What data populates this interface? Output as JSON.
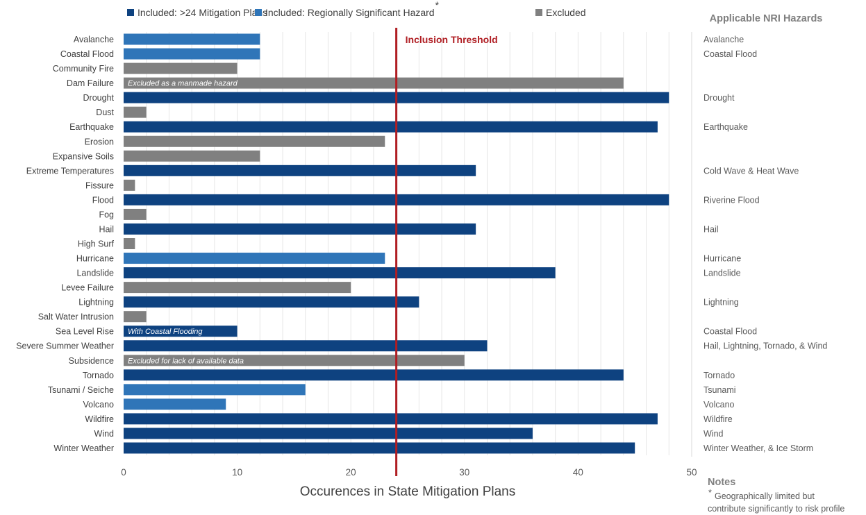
{
  "chart_data": {
    "type": "bar",
    "orientation": "horizontal",
    "xlabel": "Occurences in State Mitigation Plans",
    "xlim": [
      0,
      50
    ],
    "xticks": [
      0,
      10,
      20,
      30,
      40,
      50
    ],
    "grid": true,
    "legend_position": "top",
    "legend": [
      {
        "key": "included",
        "label": "Included: >24 Mitigation Plans",
        "color": "#0e4280"
      },
      {
        "key": "regional",
        "label": "Included: Regionally Significant Hazard",
        "marker": "*",
        "color": "#2f75b8"
      },
      {
        "key": "excluded",
        "label": "Excluded",
        "color": "#808080"
      }
    ],
    "threshold": {
      "value": 24,
      "label": "Inclusion Threshold",
      "color": "#b01e23"
    },
    "side_title": "Applicable NRI Hazards",
    "categories": [
      "Avalanche",
      "Coastal Flood",
      "Community Fire",
      "Dam Failure",
      "Drought",
      "Dust",
      "Earthquake",
      "Erosion",
      "Expansive Soils",
      "Extreme Temperatures",
      "Fissure",
      "Flood",
      "Fog",
      "Hail",
      "High Surf",
      "Hurricane",
      "Landslide",
      "Levee Failure",
      "Lightning",
      "Salt Water Intrusion",
      "Sea Level Rise",
      "Severe Summer Weather",
      "Subsidence",
      "Tornado",
      "Tsunami / Seiche",
      "Volcano",
      "Wildfire",
      "Wind",
      "Winter Weather"
    ],
    "values": [
      12,
      12,
      10,
      44,
      48,
      2,
      47,
      23,
      12,
      31,
      1,
      48,
      2,
      31,
      1,
      23,
      38,
      20,
      26,
      2,
      10,
      32,
      30,
      44,
      16,
      9,
      47,
      36,
      45
    ],
    "status": [
      "regional",
      "regional",
      "excluded",
      "excluded",
      "included",
      "excluded",
      "included",
      "excluded",
      "excluded",
      "included",
      "excluded",
      "included",
      "excluded",
      "included",
      "excluded",
      "regional",
      "included",
      "excluded",
      "included",
      "excluded",
      "included",
      "included",
      "excluded",
      "included",
      "regional",
      "regional",
      "included",
      "included",
      "included"
    ],
    "bar_notes": [
      "",
      "",
      "",
      "Excluded as a manmade hazard",
      "",
      "",
      "",
      "",
      "",
      "",
      "",
      "",
      "",
      "",
      "",
      "",
      "",
      "",
      "",
      "",
      "With Coastal Flooding",
      "",
      "Excluded for lack of available data",
      "",
      "",
      "",
      "",
      "",
      ""
    ],
    "nri_hazards": [
      "Avalanche",
      "Coastal Flood",
      "",
      "",
      "Drought",
      "",
      "Earthquake",
      "",
      "",
      "Cold Wave & Heat Wave",
      "",
      "Riverine Flood",
      "",
      "Hail",
      "",
      "Hurricane",
      "Landslide",
      "",
      "Lightning",
      "",
      "Coastal Flood",
      "Hail, Lightning, Tornado, & Wind",
      "",
      "Tornado",
      "Tsunami",
      "Volcano",
      "Wildfire",
      "Wind",
      "Winter Weather, & Ice Storm"
    ]
  },
  "notes": {
    "title": "Notes",
    "marker": "*",
    "lines": [
      "Geographically limited but",
      "contribute significantly to risk profile"
    ]
  }
}
